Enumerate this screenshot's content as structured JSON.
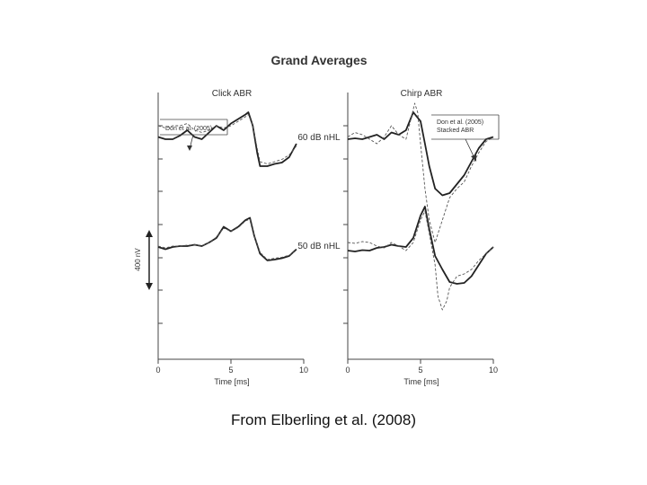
{
  "figure": {
    "title": "Grand Averages",
    "caption": "From Elberling et al. (2008)"
  },
  "colors": {
    "solid": "#222222",
    "dashed": "#555555",
    "axis": "#444444"
  },
  "chart_data": [
    {
      "type": "line",
      "title": "Click ABR",
      "xlabel": "Time [ms]",
      "xlim": [
        0,
        10
      ],
      "xticks": [
        0,
        5,
        10
      ],
      "legend": "Don et al. (2005)",
      "levels": [
        {
          "label": "60 dB nHL",
          "series": [
            {
              "style": "solid",
              "x": [
                0,
                0.5,
                1,
                1.5,
                2,
                2.5,
                3,
                3.5,
                4,
                4.5,
                5,
                5.5,
                6,
                6.2,
                6.5,
                6.8,
                7,
                7.5,
                8,
                8.5,
                9,
                9.5
              ],
              "y": [
                75,
                70,
                70,
                78,
                90,
                75,
                70,
                85,
                100,
                90,
                105,
                115,
                125,
                130,
                100,
                40,
                10,
                10,
                15,
                18,
                30,
                60
              ]
            },
            {
              "style": "dashed",
              "x": [
                0,
                0.5,
                1,
                1.5,
                2,
                2.5,
                3,
                3.5,
                4,
                4.5,
                5,
                5.5,
                6,
                6.2,
                6.5,
                6.8,
                7,
                7.5,
                8,
                8.5,
                9,
                9.5
              ],
              "y": [
                100,
                95,
                100,
                100,
                105,
                90,
                85,
                90,
                100,
                95,
                100,
                110,
                120,
                125,
                100,
                50,
                20,
                15,
                20,
                25,
                35,
                55
              ]
            }
          ]
        },
        {
          "label": "50 dB nHL",
          "series": [
            {
              "style": "solid",
              "x": [
                0,
                0.5,
                1,
                1.5,
                2,
                2.5,
                3,
                3.5,
                4,
                4.5,
                5,
                5.5,
                6,
                6.3,
                6.6,
                7,
                7.5,
                8,
                8.5,
                9,
                9.5
              ],
              "y": [
                70,
                65,
                70,
                72,
                72,
                75,
                72,
                80,
                90,
                115,
                105,
                115,
                130,
                135,
                95,
                55,
                40,
                42,
                45,
                50,
                65
              ]
            },
            {
              "style": "dashed",
              "x": [
                0,
                0.5,
                1,
                1.5,
                2,
                2.5,
                3,
                3.5,
                4,
                4.5,
                5,
                5.5,
                6,
                6.3,
                6.6,
                7,
                7.5,
                8,
                8.5,
                9,
                9.5
              ],
              "y": [
                72,
                68,
                72,
                72,
                74,
                75,
                73,
                80,
                92,
                112,
                105,
                113,
                128,
                132,
                95,
                58,
                42,
                45,
                47,
                52,
                62
              ]
            }
          ]
        }
      ]
    },
    {
      "type": "line",
      "title": "Chirp ABR",
      "xlabel": "Time [ms]",
      "xlim": [
        0,
        10
      ],
      "xticks": [
        0,
        5,
        10
      ],
      "legend": "Don et al. (2005)\nStacked ABR",
      "levels": [
        {
          "label": "60 dB nHL",
          "series": [
            {
              "style": "solid",
              "x": [
                0,
                0.5,
                1,
                1.5,
                2,
                2.5,
                3,
                3.5,
                4,
                4.5,
                5,
                5.3,
                5.6,
                6,
                6.5,
                7,
                7.5,
                8,
                8.5,
                9,
                9.5,
                10
              ],
              "y": [
                70,
                72,
                70,
                75,
                80,
                70,
                85,
                80,
                90,
                130,
                110,
                60,
                10,
                -40,
                -55,
                -50,
                -30,
                -10,
                20,
                50,
                70,
                75
              ]
            },
            {
              "style": "dashed",
              "x": [
                0,
                0.5,
                1,
                1.5,
                2,
                2.5,
                3,
                3.5,
                4,
                4.3,
                4.6,
                4.8,
                5,
                5.3,
                5.6,
                6,
                6.5,
                7,
                7.5,
                8,
                8.5,
                9,
                9.5,
                10
              ],
              "y": [
                75,
                85,
                80,
                70,
                60,
                75,
                100,
                80,
                70,
                110,
                150,
                130,
                60,
                -40,
                -110,
                -160,
                -110,
                -60,
                -40,
                -25,
                10,
                40,
                65,
                75
              ]
            }
          ]
        },
        {
          "label": "50 dB nHL",
          "series": [
            {
              "style": "solid",
              "x": [
                0,
                0.5,
                1,
                1.5,
                2,
                2.5,
                3,
                3.5,
                4,
                4.5,
                5,
                5.3,
                5.6,
                6,
                6.5,
                7,
                7.5,
                8,
                8.5,
                9,
                9.5,
                10
              ],
              "y": [
                62,
                60,
                63,
                62,
                68,
                70,
                75,
                72,
                70,
                90,
                140,
                160,
                110,
                50,
                20,
                -8,
                -12,
                -10,
                5,
                30,
                55,
                70
              ]
            },
            {
              "style": "dashed",
              "x": [
                0,
                0.5,
                1,
                1.5,
                2,
                2.5,
                3,
                3.5,
                4,
                4.5,
                5,
                5.3,
                5.6,
                6,
                6.2,
                6.5,
                6.8,
                7,
                7.5,
                8,
                8.5,
                9,
                9.5,
                10
              ],
              "y": [
                80,
                78,
                82,
                80,
                72,
                68,
                80,
                72,
                62,
                80,
                130,
                150,
                100,
                30,
                -40,
                -70,
                -50,
                -20,
                5,
                10,
                20,
                40,
                55,
                70
              ]
            }
          ]
        }
      ]
    }
  ],
  "scalebar": {
    "label": "400 nV"
  }
}
